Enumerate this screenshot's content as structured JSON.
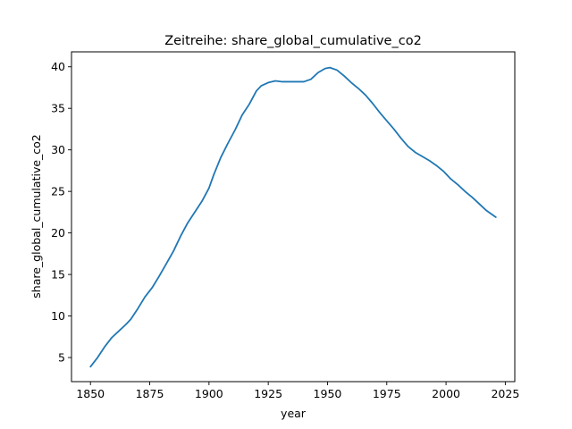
{
  "chart_data": {
    "type": "line",
    "title": "Zeitreihe: share_global_cumulative_co2",
    "xlabel": "year",
    "ylabel": "share_global_cumulative_co2",
    "xlim": [
      1842,
      2029
    ],
    "ylim": [
      2.1,
      41.8
    ],
    "xticks": [
      1850,
      1875,
      1900,
      1925,
      1950,
      1975,
      2000,
      2025
    ],
    "yticks": [
      5,
      10,
      15,
      20,
      25,
      30,
      35,
      40
    ],
    "grid": false,
    "color": "#1f77b4",
    "series": [
      {
        "x": [
          1850,
          1853,
          1856,
          1859,
          1862,
          1865,
          1867,
          1870,
          1873,
          1876,
          1879,
          1882,
          1885,
          1888,
          1891,
          1894,
          1897,
          1900,
          1902,
          1905,
          1908,
          1911,
          1914,
          1917,
          1920,
          1922,
          1925,
          1928,
          1931,
          1934,
          1937,
          1940,
          1943,
          1946,
          1949,
          1951,
          1954,
          1957,
          1960,
          1963,
          1966,
          1969,
          1972,
          1975,
          1978,
          1981,
          1984,
          1987,
          1990,
          1993,
          1996,
          1999,
          2002,
          2005,
          2008,
          2011,
          2014,
          2017,
          2021
        ],
        "values": [
          3.9,
          5.0,
          6.3,
          7.4,
          8.2,
          9.0,
          9.6,
          10.9,
          12.3,
          13.4,
          14.8,
          16.3,
          17.8,
          19.6,
          21.2,
          22.5,
          23.8,
          25.4,
          27.0,
          29.1,
          30.8,
          32.4,
          34.2,
          35.5,
          37.1,
          37.7,
          38.1,
          38.3,
          38.2,
          38.2,
          38.2,
          38.2,
          38.5,
          39.3,
          39.8,
          39.9,
          39.6,
          38.9,
          38.1,
          37.4,
          36.6,
          35.6,
          34.5,
          33.5,
          32.5,
          31.4,
          30.4,
          29.7,
          29.2,
          28.7,
          28.1,
          27.4,
          26.5,
          25.8,
          25.0,
          24.3,
          23.5,
          22.7,
          21.9
        ]
      }
    ]
  }
}
